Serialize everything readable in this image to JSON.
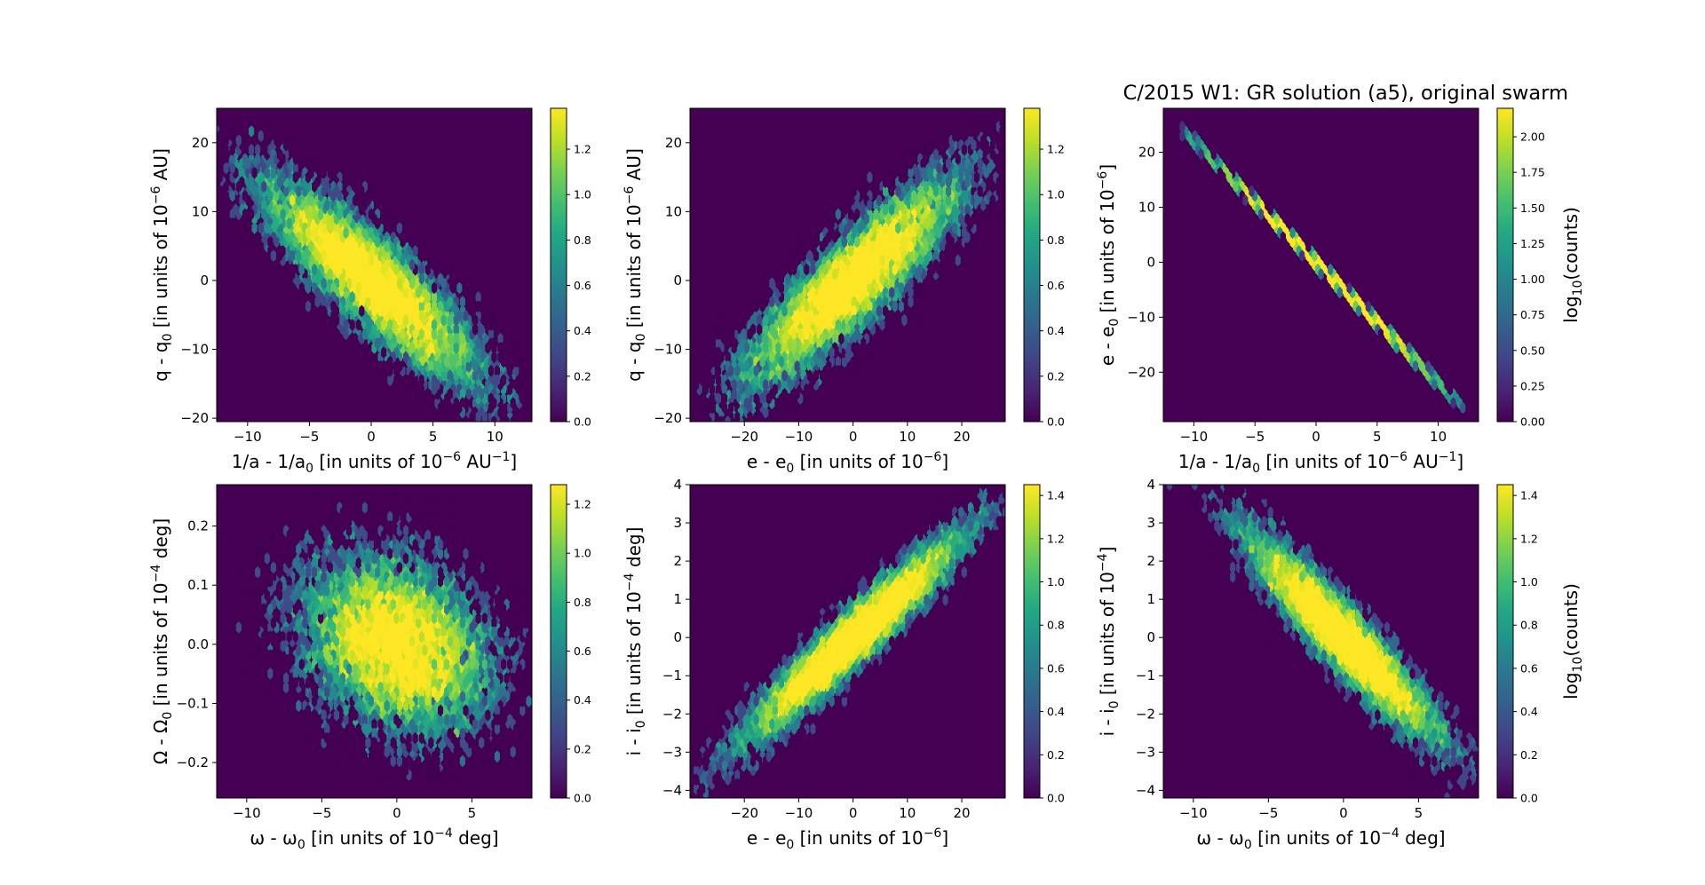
{
  "figure": {
    "title": "C/2015 W1: GR solution (a5),  original swarm"
  },
  "chart_data": [
    {
      "type": "heatmap",
      "style": "hexbin",
      "colormap": "viridis",
      "background_color": "#440154",
      "xlabel": {
        "pre": "1/a - 1/a",
        "sub": "0",
        "mid": " [in units of 10",
        "sup": "−6",
        "post": " AU",
        "sup2": "−1",
        "end": "]"
      },
      "ylabel": {
        "pre": "q - q",
        "sub": "0",
        "mid": " [in units of 10",
        "sup": "−6",
        "post": " AU]"
      },
      "xlim": [
        -12.5,
        13
      ],
      "ylim": [
        -20.5,
        25
      ],
      "xticks": [
        -10,
        -5,
        0,
        5,
        10
      ],
      "yticks": [
        -20,
        -10,
        0,
        10,
        20
      ],
      "distribution": {
        "type": "correlated_gaussian",
        "mean": [
          0,
          0
        ],
        "sigma": [
          4.5,
          7.5
        ],
        "correlation": -0.87,
        "n": 12000,
        "grid_x": 50,
        "grid_y": 34
      },
      "colorbar": {
        "range": [
          0,
          1.38
        ],
        "ticks": [
          0,
          0.2,
          0.4,
          0.6,
          0.8,
          1.0,
          1.2
        ],
        "tick_labels": [
          "0.0",
          "0.2",
          "0.4",
          "0.6",
          "0.8",
          "1.0",
          "1.2"
        ],
        "label": null
      }
    },
    {
      "type": "heatmap",
      "style": "hexbin",
      "colormap": "viridis",
      "background_color": "#440154",
      "xlabel": {
        "pre": "e - e",
        "sub": "0",
        "mid": " [in units of 10",
        "sup": "−6",
        "post": "]"
      },
      "ylabel": {
        "pre": "q - q",
        "sub": "0",
        "mid": " [in units of 10",
        "sup": "−6",
        "post": " AU]"
      },
      "xlim": [
        -30,
        28
      ],
      "ylim": [
        -20.5,
        25
      ],
      "xticks": [
        -20,
        -10,
        0,
        10,
        20
      ],
      "yticks": [
        -20,
        -10,
        0,
        10,
        20
      ],
      "distribution": {
        "type": "correlated_gaussian",
        "mean": [
          0,
          0
        ],
        "sigma": [
          10,
          7.5
        ],
        "correlation": 0.87,
        "n": 12000,
        "grid_x": 50,
        "grid_y": 34
      },
      "colorbar": {
        "range": [
          0,
          1.38
        ],
        "ticks": [
          0,
          0.2,
          0.4,
          0.6,
          0.8,
          1.0,
          1.2
        ],
        "tick_labels": [
          "0.0",
          "0.2",
          "0.4",
          "0.6",
          "0.8",
          "1.0",
          "1.2"
        ],
        "label": null
      }
    },
    {
      "type": "heatmap",
      "style": "hexbin",
      "colormap": "viridis",
      "background_color": "#440154",
      "xlabel": {
        "pre": "1/a - 1/a",
        "sub": "0",
        "mid": " [in units of 10",
        "sup": "−6",
        "post": " AU",
        "sup2": "−1",
        "end": "]"
      },
      "ylabel": {
        "pre": "e - e",
        "sub": "0",
        "mid": " [in units of 10",
        "sup": "−6",
        "post": "]"
      },
      "xlim": [
        -12.5,
        13.3
      ],
      "ylim": [
        -29,
        28
      ],
      "xticks": [
        -10,
        -5,
        0,
        5,
        10
      ],
      "yticks": [
        -20,
        -10,
        0,
        10,
        20
      ],
      "distribution": {
        "type": "line",
        "slope": -2.2,
        "intercept": 0,
        "x_range": [
          -11,
          12
        ],
        "sigma": 4.2,
        "n": 12000,
        "grid_x": 50,
        "grid_y": 34
      },
      "colorbar": {
        "range": [
          0,
          2.2
        ],
        "ticks": [
          0,
          0.25,
          0.5,
          0.75,
          1.0,
          1.25,
          1.5,
          1.75,
          2.0
        ],
        "tick_labels": [
          "0.00",
          "0.25",
          "0.50",
          "0.75",
          "1.00",
          "1.25",
          "1.50",
          "1.75",
          "2.00"
        ],
        "label": {
          "pre": "log",
          "sub": "10",
          "post": "(counts)"
        }
      }
    },
    {
      "type": "heatmap",
      "style": "hexbin",
      "colormap": "viridis",
      "background_color": "#440154",
      "xlabel": {
        "pre": "ω - ω",
        "sub": "0",
        "mid": " [in units of 10",
        "sup": "−4",
        "post": " deg]"
      },
      "ylabel": {
        "pre": "Ω - Ω",
        "sub": "0",
        "mid": " [in units of 10",
        "sup": "−4",
        "post": " deg]"
      },
      "xlim": [
        -12,
        9
      ],
      "ylim": [
        -0.26,
        0.27
      ],
      "xticks": [
        -10,
        -5,
        0,
        5
      ],
      "yticks": [
        -0.2,
        -0.1,
        0.0,
        0.1,
        0.2
      ],
      "ytick_labels": [
        "−0.2",
        "−0.1",
        "0.0",
        "0.1",
        "0.2"
      ],
      "distribution": {
        "type": "correlated_gaussian",
        "mean": [
          0,
          0
        ],
        "sigma": [
          3.2,
          0.075
        ],
        "correlation": -0.25,
        "n": 12000,
        "grid_x": 50,
        "grid_y": 34
      },
      "colorbar": {
        "range": [
          0,
          1.28
        ],
        "ticks": [
          0,
          0.2,
          0.4,
          0.6,
          0.8,
          1.0,
          1.2
        ],
        "tick_labels": [
          "0.0",
          "0.2",
          "0.4",
          "0.6",
          "0.8",
          "1.0",
          "1.2"
        ],
        "label": null
      }
    },
    {
      "type": "heatmap",
      "style": "hexbin",
      "colormap": "viridis",
      "background_color": "#440154",
      "xlabel": {
        "pre": "e - e",
        "sub": "0",
        "mid": " [in units of 10",
        "sup": "−6",
        "post": "]"
      },
      "ylabel": {
        "pre": "i - i",
        "sub": "0",
        "mid": " [in units of 10",
        "sup": "−4",
        "post": " deg]"
      },
      "xlim": [
        -30,
        28
      ],
      "ylim": [
        -4.2,
        4
      ],
      "xticks": [
        -20,
        -10,
        0,
        10,
        20
      ],
      "yticks": [
        -4,
        -3,
        -2,
        -1,
        0,
        1,
        2,
        3,
        4
      ],
      "distribution": {
        "type": "correlated_gaussian",
        "mean": [
          0,
          0
        ],
        "sigma": [
          10,
          1.35
        ],
        "correlation": 0.95,
        "n": 12000,
        "grid_x": 50,
        "grid_y": 34
      },
      "colorbar": {
        "range": [
          0,
          1.45
        ],
        "ticks": [
          0,
          0.2,
          0.4,
          0.6,
          0.8,
          1.0,
          1.2,
          1.4
        ],
        "tick_labels": [
          "0.0",
          "0.2",
          "0.4",
          "0.6",
          "0.8",
          "1.0",
          "1.2",
          "1.4"
        ],
        "label": null
      }
    },
    {
      "type": "heatmap",
      "style": "hexbin",
      "colormap": "viridis",
      "background_color": "#440154",
      "xlabel": {
        "pre": "ω - ω",
        "sub": "0",
        "mid": " [in units of 10",
        "sup": "−4",
        "post": " deg]"
      },
      "ylabel": {
        "pre": "i - i",
        "sub": "0",
        "mid": " [in units of 10",
        "sup": "−4",
        "post": "]"
      },
      "xlim": [
        -12,
        9
      ],
      "ylim": [
        -4.2,
        4
      ],
      "xticks": [
        -10,
        -5,
        0,
        5
      ],
      "yticks": [
        -4,
        -3,
        -2,
        -1,
        0,
        1,
        2,
        3,
        4
      ],
      "distribution": {
        "type": "correlated_gaussian",
        "mean": [
          0,
          0
        ],
        "sigma": [
          3.2,
          1.35
        ],
        "correlation": -0.93,
        "n": 12000,
        "grid_x": 50,
        "grid_y": 34
      },
      "colorbar": {
        "range": [
          0,
          1.45
        ],
        "ticks": [
          0,
          0.2,
          0.4,
          0.6,
          0.8,
          1.0,
          1.2,
          1.4
        ],
        "tick_labels": [
          "0.0",
          "0.2",
          "0.4",
          "0.6",
          "0.8",
          "1.0",
          "1.2",
          "1.4"
        ],
        "label": {
          "pre": "log",
          "sub": "10",
          "post": "(counts)"
        }
      }
    }
  ]
}
